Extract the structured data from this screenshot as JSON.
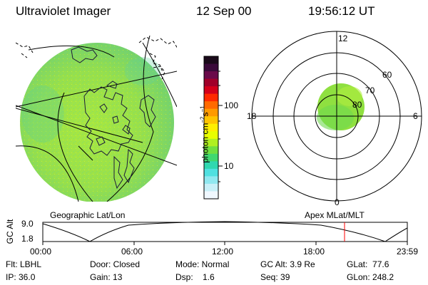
{
  "header": {
    "instrument": "Ultraviolet Imager",
    "date": "12 Sep 00",
    "time": "19:56:12 UT"
  },
  "colorbar": {
    "unit_label": "photon cm",
    "unit_exp1": "−2",
    "unit_mid": "s",
    "unit_exp2": "−1",
    "ticks": [
      "100",
      "10"
    ],
    "colors": [
      "#1a0a1a",
      "#3a0a3a",
      "#6a0a4a",
      "#a0002a",
      "#d4001a",
      "#ff2a00",
      "#ff6a00",
      "#ff9a00",
      "#ffc400",
      "#ffee00",
      "#e8ff00",
      "#b0f020",
      "#70e040",
      "#40d870",
      "#30d8b0",
      "#50e0e0",
      "#90e8f0",
      "#c8f0f8",
      "#f0f8ff"
    ]
  },
  "geo_panel": {
    "label": "Geographic Lat/Lon",
    "disk_color": "#9ee046"
  },
  "polar_panel": {
    "label": "Apex MLat/MLT",
    "mlt_labels": {
      "top": "12",
      "left": "18",
      "right": "6",
      "bottom": "0"
    },
    "lat_labels": [
      "80",
      "70",
      "60"
    ],
    "oval_color": "#8fe040"
  },
  "altitude_plot": {
    "ylabel": "GC Alt",
    "yticks": [
      "9.0",
      "1.8"
    ],
    "xticks": [
      "00:00",
      "06:00",
      "12:00",
      "18:00",
      "23:59"
    ],
    "current_time_marker_color": "#ff0000"
  },
  "footer": {
    "flt": "Flt: LBHL",
    "ip": "IP: 36.0",
    "door": "Door: Closed",
    "gain": "Gain: 13",
    "mode": "Mode: Normal",
    "dsp": "Dsp:    1.6",
    "gcalt": "GC Alt: 3.9 Re",
    "seq": "Seq: 39",
    "glat": "GLat:  77.6",
    "glon": "GLon: 248.2"
  }
}
